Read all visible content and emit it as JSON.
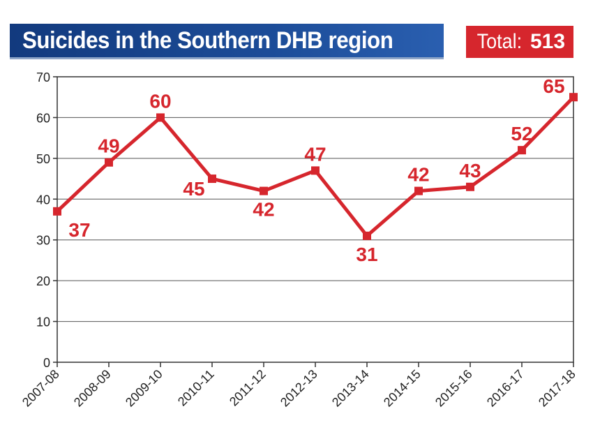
{
  "header": {
    "title": "Suicides in the Southern DHB region",
    "total_label": "Total:",
    "total_value": "513"
  },
  "colors": {
    "line": "#d6262d",
    "banner": "#1c4c98",
    "badge": "#d6262d"
  },
  "chart_data": {
    "type": "line",
    "title": "Suicides in the Southern DHB region",
    "categories": [
      "2007-08",
      "2008-09",
      "2009-10",
      "2010-11",
      "2011-12",
      "2012-13",
      "2013-14",
      "2014-15",
      "2015-16",
      "2016-17",
      "2017-18"
    ],
    "series": [
      {
        "values": [
          37,
          49,
          60,
          45,
          42,
          47,
          31,
          42,
          43,
          52,
          65
        ]
      }
    ],
    "ylim": [
      0,
      70
    ],
    "yticks": [
      0,
      10,
      20,
      30,
      40,
      50,
      60,
      70
    ],
    "grid": true,
    "xlabel": "",
    "ylabel": ""
  }
}
